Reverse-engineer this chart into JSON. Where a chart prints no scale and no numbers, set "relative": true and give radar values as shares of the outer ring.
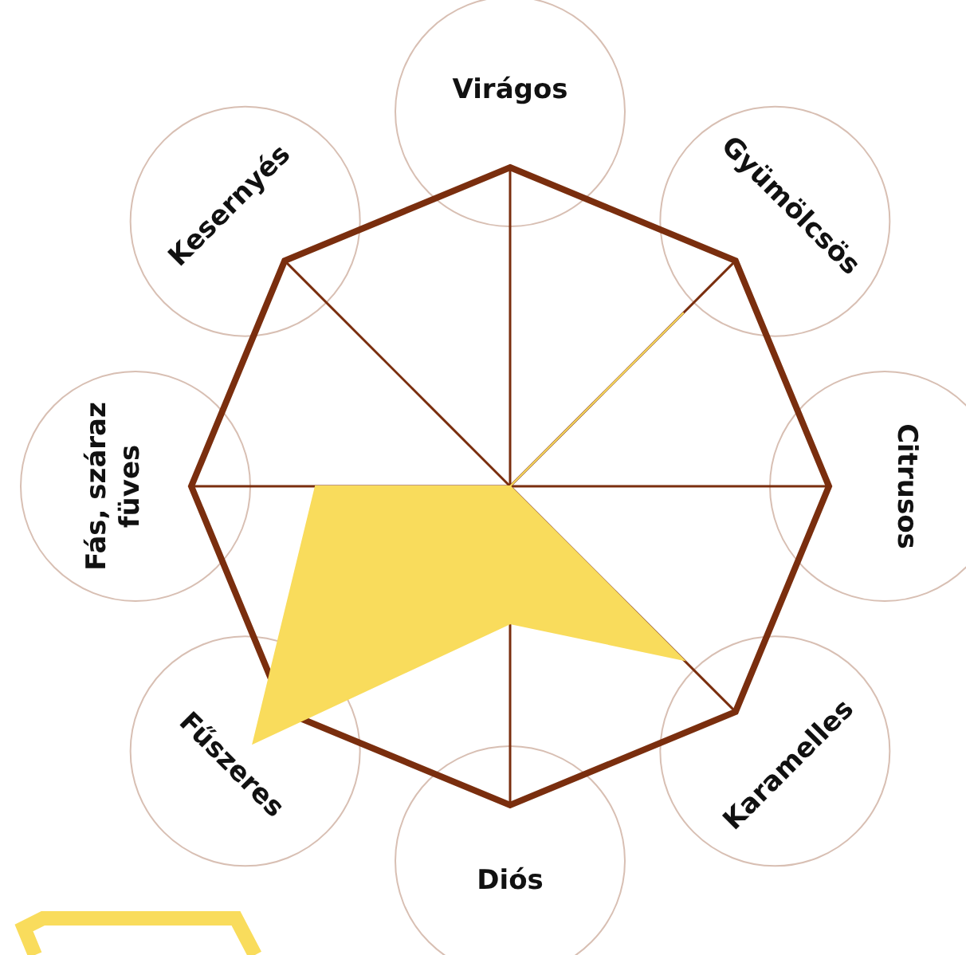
{
  "chart_data": {
    "type": "radar",
    "relative": true,
    "grid": true,
    "categories": [
      "Virágos",
      "Gyümölcsös",
      "Citrusos",
      "Karamelles",
      "Diós",
      "Fűszeres",
      "Fás, száraz füves",
      "Kesernyés"
    ],
    "series": [
      {
        "color": "#f9dc5c",
        "values": [
          0,
          0.77,
          0,
          0.77,
          0.43,
          1.14,
          0.61,
          0
        ]
      }
    ]
  }
}
